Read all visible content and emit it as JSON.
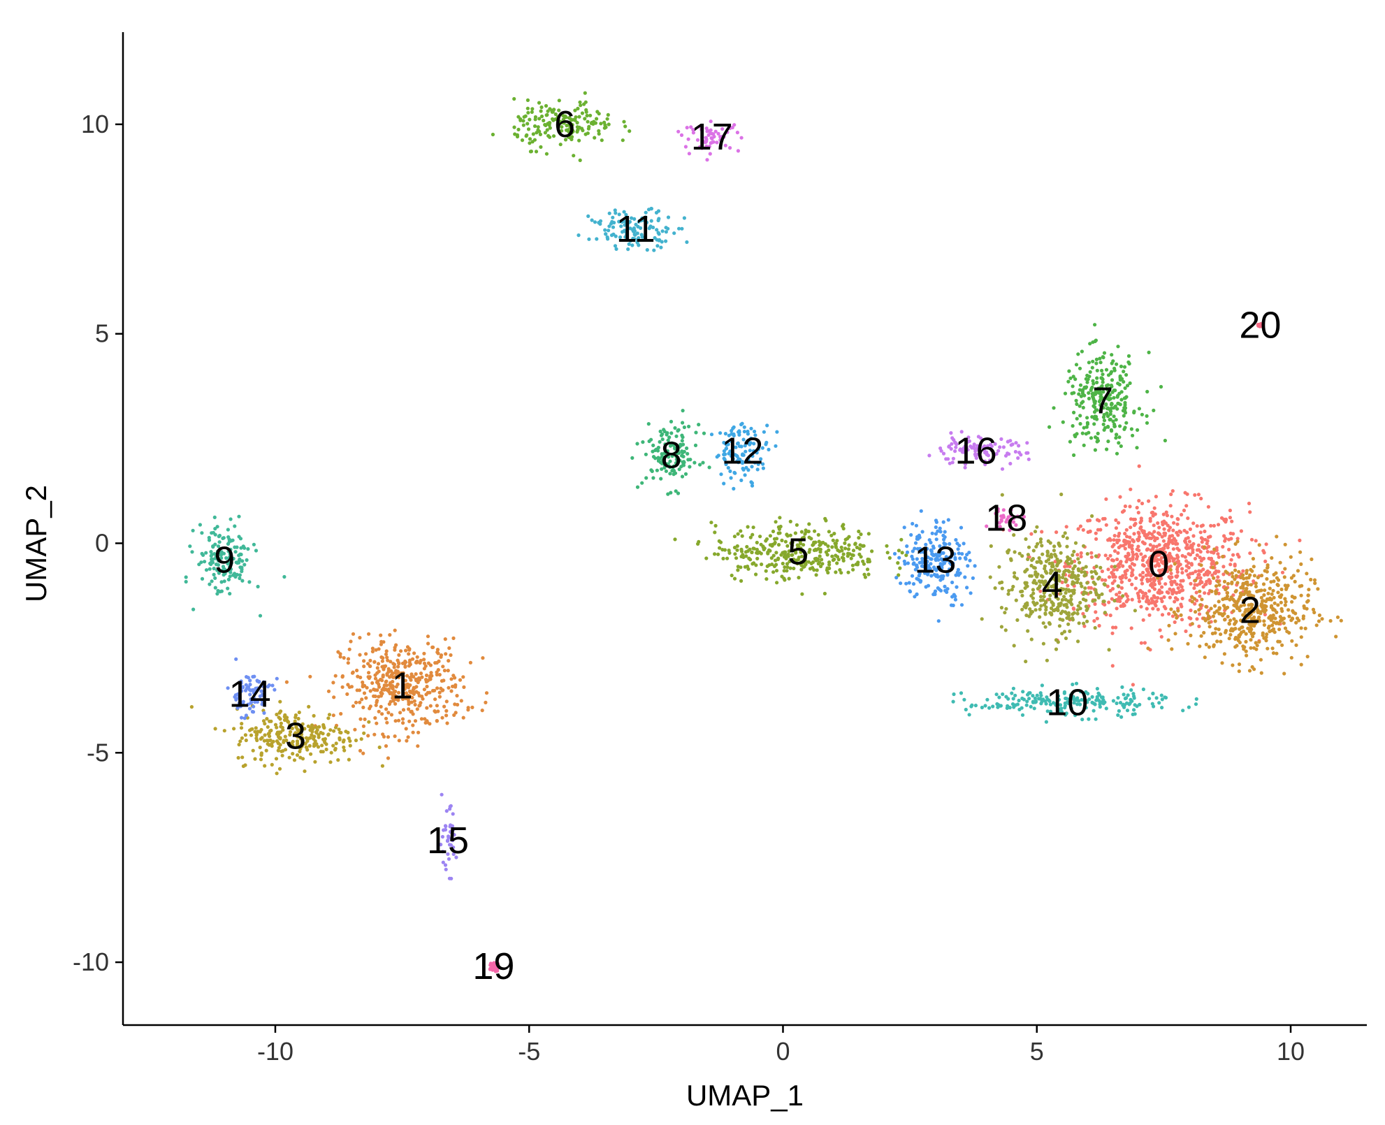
{
  "chart_data": {
    "type": "scatter",
    "title": "",
    "xlabel": "UMAP_1",
    "ylabel": "UMAP_2",
    "xlim": [
      -13,
      11.5
    ],
    "ylim": [
      -11.5,
      12.2
    ],
    "grid": false,
    "legend": "none",
    "x_ticks": [
      {
        "value": -10,
        "label": "-10"
      },
      {
        "value": -5,
        "label": "-5"
      },
      {
        "value": 0,
        "label": "0"
      },
      {
        "value": 5,
        "label": "5"
      },
      {
        "value": 10,
        "label": "10"
      }
    ],
    "y_ticks": [
      {
        "value": 10,
        "label": "10"
      },
      {
        "value": 5,
        "label": "5"
      },
      {
        "value": 0,
        "label": "0"
      },
      {
        "value": -5,
        "label": "-5"
      },
      {
        "value": -10,
        "label": "-10"
      }
    ],
    "series": [
      {
        "label": "0",
        "color": "#F8766D",
        "center": [
          7.4,
          -0.5
        ],
        "spread": [
          1.6,
          1.3
        ],
        "label_pos": [
          7.4,
          -0.5
        ]
      },
      {
        "label": "1",
        "color": "#E18A3D",
        "center": [
          -7.5,
          -3.4
        ],
        "spread": [
          1.1,
          1.0
        ],
        "label_pos": [
          -7.5,
          -3.4
        ]
      },
      {
        "label": "2",
        "color": "#CF9432",
        "center": [
          9.2,
          -1.6
        ],
        "spread": [
          1.1,
          1.1
        ],
        "label_pos": [
          9.2,
          -1.6
        ]
      },
      {
        "label": "3",
        "color": "#B8A22D",
        "center": [
          -9.6,
          -4.6
        ],
        "spread": [
          1.1,
          0.6
        ],
        "label_pos": [
          -9.6,
          -4.6
        ]
      },
      {
        "label": "4",
        "color": "#9EA53A",
        "center": [
          5.3,
          -1.0
        ],
        "spread": [
          0.9,
          1.1
        ],
        "label_pos": [
          5.3,
          -1.0
        ]
      },
      {
        "label": "5",
        "color": "#86A82C",
        "center": [
          0.3,
          -0.2
        ],
        "spread": [
          1.5,
          0.6
        ],
        "label_pos": [
          0.3,
          -0.2
        ]
      },
      {
        "label": "6",
        "color": "#6BB131",
        "center": [
          -4.3,
          10.0
        ],
        "spread": [
          0.9,
          0.5
        ],
        "label_pos": [
          -4.3,
          10.0
        ]
      },
      {
        "label": "7",
        "color": "#4EB447",
        "center": [
          6.3,
          3.4
        ],
        "spread": [
          0.7,
          1.0
        ],
        "label_pos": [
          6.3,
          3.4
        ]
      },
      {
        "label": "8",
        "color": "#3EB678",
        "center": [
          -2.2,
          2.1
        ],
        "spread": [
          0.5,
          0.7
        ],
        "label_pos": [
          -2.2,
          2.1
        ]
      },
      {
        "label": "9",
        "color": "#40B898",
        "center": [
          -11.0,
          -0.4
        ],
        "spread": [
          0.5,
          0.8
        ],
        "label_pos": [
          -11.0,
          -0.4
        ]
      },
      {
        "label": "10",
        "color": "#3FBBB2",
        "center": [
          5.6,
          -3.8
        ],
        "spread": [
          1.8,
          0.3
        ],
        "label_pos": [
          5.6,
          -3.8
        ]
      },
      {
        "label": "11",
        "color": "#43B2CE",
        "center": [
          -2.9,
          7.5
        ],
        "spread": [
          0.8,
          0.4
        ],
        "label_pos": [
          -2.9,
          7.5
        ]
      },
      {
        "label": "12",
        "color": "#3FA7E4",
        "center": [
          -0.8,
          2.2
        ],
        "spread": [
          0.5,
          0.6
        ],
        "label_pos": [
          -0.8,
          2.2
        ]
      },
      {
        "label": "13",
        "color": "#4A9AF0",
        "center": [
          3.0,
          -0.4
        ],
        "spread": [
          0.6,
          0.9
        ],
        "label_pos": [
          3.0,
          -0.4
        ]
      },
      {
        "label": "14",
        "color": "#6E8FF2",
        "center": [
          -10.5,
          -3.6
        ],
        "spread": [
          0.4,
          0.5
        ],
        "label_pos": [
          -10.5,
          -3.6
        ]
      },
      {
        "label": "15",
        "color": "#9C84F2",
        "center": [
          -6.6,
          -7.1
        ],
        "spread": [
          0.15,
          0.7
        ],
        "label_pos": [
          -6.6,
          -7.1
        ]
      },
      {
        "label": "16",
        "color": "#C77CEF",
        "center": [
          3.8,
          2.2
        ],
        "spread": [
          0.9,
          0.3
        ],
        "label_pos": [
          3.8,
          2.2
        ]
      },
      {
        "label": "17",
        "color": "#DB72E6",
        "center": [
          -1.4,
          9.7
        ],
        "spread": [
          0.5,
          0.3
        ],
        "label_pos": [
          -1.4,
          9.7
        ]
      },
      {
        "label": "18",
        "color": "#EB6BC8",
        "center": [
          4.4,
          0.6
        ],
        "spread": [
          0.3,
          0.2
        ],
        "label_pos": [
          4.4,
          0.6
        ]
      },
      {
        "label": "19",
        "color": "#F366A8",
        "center": [
          -5.7,
          -10.1
        ],
        "spread": [
          0.12,
          0.12
        ],
        "label_pos": [
          -5.7,
          -10.1
        ]
      },
      {
        "label": "20",
        "color": "#F76B86",
        "center": [
          9.4,
          5.2
        ],
        "spread": [
          0.04,
          0.04
        ],
        "label_pos": [
          9.4,
          5.2
        ]
      }
    ]
  }
}
